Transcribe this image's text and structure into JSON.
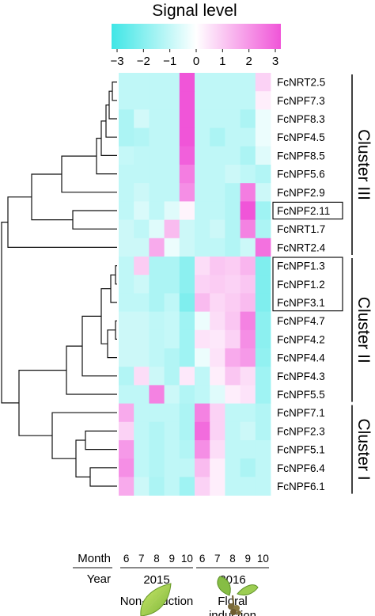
{
  "chart_data": {
    "type": "heatmap",
    "title": "Signal level",
    "colorbar": {
      "ticks": [
        "−3",
        "−2",
        "−1",
        "0",
        "1",
        "2",
        "3"
      ],
      "range": [
        -3,
        3
      ],
      "low_color": "#3fe6e6",
      "mid_color": "#ffffff",
      "high_color": "#f055d8"
    },
    "rows": [
      "FcNRT2.5",
      "FcNPF7.3",
      "FcNPF8.3",
      "FcNPF4.5",
      "FcNPF8.5",
      "FcNPF5.6",
      "FcNPF2.9",
      "FcNPF2.11",
      "FcNRT1.7",
      "FcNRT2.4",
      "FcNPF1.3",
      "FcNPF1.2",
      "FcNPF3.1",
      "FcNPF4.7",
      "FcNPF4.2",
      "FcNPF4.4",
      "FcNPF4.3",
      "FcNPF5.5",
      "FcNPF7.1",
      "FcNPF2.3",
      "FcNPF5.1",
      "FcNPF6.4",
      "FcNPF6.1"
    ],
    "boxed_rows": [
      "FcNPF2.11",
      "FcNPF1.3",
      "FcNPF1.2",
      "FcNPF3.1"
    ],
    "row_label": "Month",
    "col_group_label": "Year",
    "columns": [
      "6",
      "7",
      "8",
      "9",
      "10",
      "6",
      "7",
      "8",
      "9",
      "10"
    ],
    "years": [
      {
        "label": "2015",
        "condition": "Non-induction"
      },
      {
        "label": "2016",
        "condition": "Floral induction"
      }
    ],
    "values": [
      [
        -1.0,
        -1.0,
        -1.0,
        -1.0,
        3.0,
        -1.0,
        -1.0,
        -1.0,
        -1.0,
        0.8
      ],
      [
        -1.0,
        -1.0,
        -1.0,
        -1.0,
        3.0,
        -1.0,
        -1.0,
        -1.0,
        -1.0,
        0.3
      ],
      [
        -1.3,
        -0.7,
        -1.0,
        -1.0,
        3.0,
        -1.0,
        -1.0,
        -1.0,
        -1.3,
        -0.3
      ],
      [
        -1.3,
        -1.2,
        -1.0,
        -1.0,
        3.0,
        -1.0,
        -1.3,
        -1.0,
        -1.0,
        -0.3
      ],
      [
        -0.9,
        -1.0,
        -1.0,
        -1.0,
        2.8,
        -1.0,
        -1.0,
        -1.0,
        -1.3,
        -0.5
      ],
      [
        -1.0,
        -1.0,
        -1.0,
        -1.0,
        2.3,
        -1.0,
        -1.0,
        -0.8,
        -1.0,
        -1.2
      ],
      [
        -1.0,
        -0.8,
        -1.0,
        -1.0,
        2.0,
        -1.0,
        -1.0,
        -1.2,
        2.3,
        -0.8
      ],
      [
        -1.0,
        -0.6,
        -1.0,
        -0.5,
        0.2,
        -1.0,
        -1.0,
        -1.2,
        3.0,
        -1.5
      ],
      [
        -0.8,
        -1.0,
        -0.5,
        1.2,
        -0.8,
        -1.0,
        -0.8,
        -1.2,
        2.2,
        -1.3
      ],
      [
        -0.8,
        -0.8,
        1.5,
        -0.3,
        -0.8,
        -1.0,
        -1.0,
        -1.2,
        -0.8,
        2.5
      ],
      [
        -1.0,
        0.9,
        -1.3,
        -1.3,
        -1.8,
        0.6,
        1.0,
        0.9,
        1.3,
        -2.0
      ],
      [
        -1.0,
        -0.8,
        -1.3,
        -1.3,
        -1.8,
        0.8,
        0.9,
        0.8,
        1.0,
        -2.0
      ],
      [
        -1.0,
        -1.0,
        -1.3,
        -1.0,
        -2.0,
        1.2,
        0.7,
        0.9,
        1.2,
        -2.0
      ],
      [
        -0.8,
        -0.8,
        -1.0,
        -0.9,
        -1.5,
        -0.3,
        0.6,
        1.0,
        2.2,
        -1.8
      ],
      [
        -0.8,
        -0.8,
        -1.0,
        -0.9,
        -1.5,
        0.5,
        0.4,
        0.8,
        2.0,
        -1.8
      ],
      [
        -0.8,
        -0.8,
        -1.0,
        -1.2,
        -1.5,
        -0.3,
        0.5,
        1.5,
        1.8,
        -1.7
      ],
      [
        -1.2,
        0.6,
        -0.8,
        -1.2,
        0.4,
        -1.0,
        0.3,
        1.0,
        0.6,
        -1.5
      ],
      [
        -1.0,
        -1.0,
        2.2,
        -0.8,
        -1.2,
        -1.0,
        -0.5,
        0.3,
        0.5,
        -1.5
      ],
      [
        1.5,
        -1.0,
        -1.0,
        -1.0,
        -1.3,
        2.2,
        0.8,
        -1.0,
        -1.0,
        -1.2
      ],
      [
        0.8,
        -1.0,
        -1.2,
        -1.0,
        -1.3,
        2.6,
        0.8,
        -1.0,
        -0.8,
        -1.2
      ],
      [
        1.8,
        -1.0,
        -1.2,
        -1.0,
        -1.2,
        2.0,
        0.6,
        -1.0,
        -1.0,
        -1.0
      ],
      [
        2.0,
        -1.0,
        -1.2,
        -1.0,
        -1.0,
        1.2,
        0.3,
        -1.0,
        -1.3,
        -1.0
      ],
      [
        1.5,
        -0.8,
        -1.3,
        -1.0,
        -1.5,
        0.8,
        0.3,
        -1.0,
        -1.0,
        -1.0
      ]
    ],
    "clusters": [
      {
        "label": "Cluster III",
        "first_row": 0,
        "last_row": 9
      },
      {
        "label": "Cluster II",
        "first_row": 10,
        "last_row": 17
      },
      {
        "label": "Cluster I",
        "first_row": 18,
        "last_row": 22
      }
    ],
    "dendrogram": {
      "leaf_order_is_rows": true,
      "has_dendrogram": true
    }
  }
}
